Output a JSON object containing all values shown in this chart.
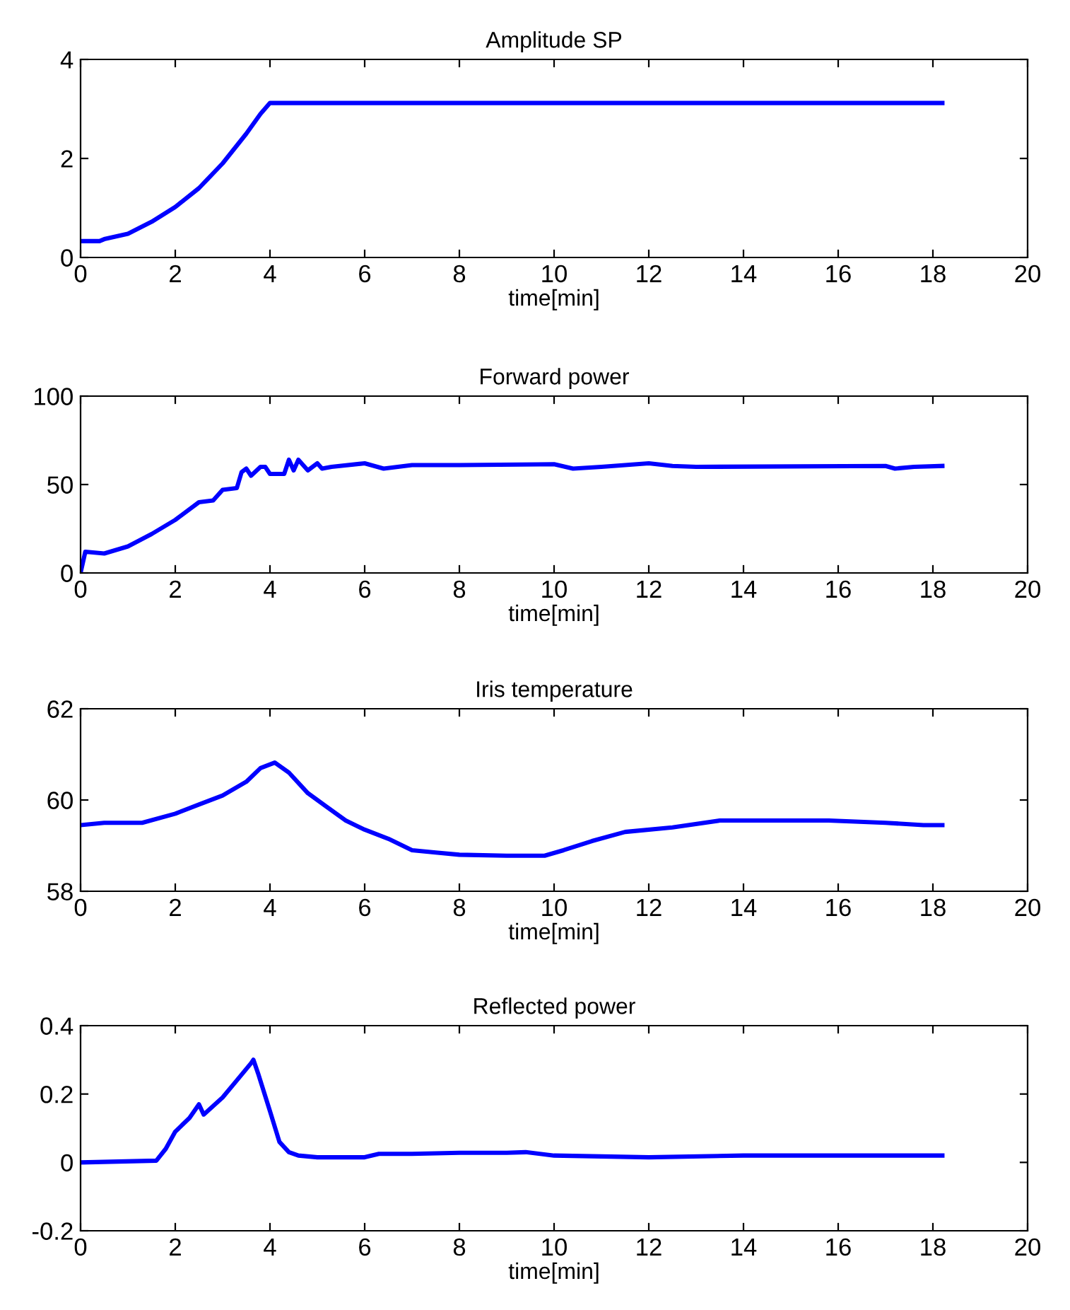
{
  "chart_data": [
    {
      "type": "line",
      "title": "Amplitude SP",
      "xlabel": "time[min]",
      "xlim": [
        0,
        20
      ],
      "xticks": [
        0,
        2,
        4,
        6,
        8,
        10,
        12,
        14,
        16,
        18,
        20
      ],
      "ylim": [
        0,
        4
      ],
      "yticks": [
        0,
        2,
        4
      ],
      "grid": false,
      "series": [
        {
          "color": "#0000ff",
          "x": [
            0,
            0.4,
            0.5,
            1,
            1.5,
            2,
            2.5,
            3,
            3.5,
            3.8,
            4,
            18.2
          ],
          "values": [
            0.33,
            0.33,
            0.37,
            0.48,
            0.72,
            1.02,
            1.4,
            1.9,
            2.5,
            2.9,
            3.12,
            3.12
          ]
        }
      ]
    },
    {
      "type": "line",
      "title": "Forward power",
      "xlabel": "time[min]",
      "xlim": [
        0,
        20
      ],
      "xticks": [
        0,
        2,
        4,
        6,
        8,
        10,
        12,
        14,
        16,
        18,
        20
      ],
      "ylim": [
        0,
        100
      ],
      "yticks": [
        0,
        50,
        100
      ],
      "grid": false,
      "series": [
        {
          "color": "#0000ff",
          "x": [
            0,
            0.1,
            0.5,
            1,
            1.5,
            2,
            2.5,
            2.8,
            3,
            3.3,
            3.4,
            3.5,
            3.6,
            3.8,
            3.9,
            4,
            4.3,
            4.4,
            4.5,
            4.6,
            4.8,
            5.0,
            5.1,
            5.3,
            6,
            6.4,
            7,
            8,
            10,
            10.4,
            11,
            11.5,
            12,
            12.5,
            13,
            17,
            17.2,
            17.6,
            18.2
          ],
          "values": [
            0,
            12,
            11,
            15,
            22,
            30,
            40,
            41,
            47,
            48,
            57,
            59,
            55,
            60,
            60,
            56,
            56,
            64,
            58,
            64,
            58,
            62,
            59,
            60,
            62,
            59,
            61,
            61,
            61.5,
            59,
            60,
            61,
            62,
            60.5,
            60,
            60.5,
            59,
            60,
            60.5
          ]
        }
      ]
    },
    {
      "type": "line",
      "title": "Iris temperature",
      "xlabel": "time[min]",
      "xlim": [
        0,
        20
      ],
      "xticks": [
        0,
        2,
        4,
        6,
        8,
        10,
        12,
        14,
        16,
        18,
        20
      ],
      "ylim": [
        58,
        62
      ],
      "yticks": [
        58,
        60,
        62
      ],
      "grid": false,
      "series": [
        {
          "color": "#0000ff",
          "x": [
            0,
            0.5,
            1.3,
            2,
            2.5,
            3,
            3.5,
            3.8,
            4.1,
            4.4,
            4.8,
            5.2,
            5.6,
            6,
            6.5,
            7,
            7.5,
            8,
            9,
            9.8,
            10.2,
            10.8,
            11.5,
            12.5,
            13.5,
            15.8,
            17,
            17.8,
            18.2
          ],
          "values": [
            59.45,
            59.5,
            59.5,
            59.7,
            59.9,
            60.1,
            60.4,
            60.7,
            60.82,
            60.6,
            60.15,
            59.85,
            59.55,
            59.35,
            59.15,
            58.9,
            58.85,
            58.8,
            58.78,
            58.78,
            58.9,
            59.1,
            59.3,
            59.4,
            59.55,
            59.55,
            59.5,
            59.45,
            59.45
          ]
        }
      ]
    },
    {
      "type": "line",
      "title": "Reflected power",
      "xlabel": "time[min]",
      "xlim": [
        0,
        20
      ],
      "xticks": [
        0,
        2,
        4,
        6,
        8,
        10,
        12,
        14,
        16,
        18,
        20
      ],
      "ylim": [
        -0.2,
        0.4
      ],
      "yticks": [
        -0.2,
        0,
        0.2,
        0.4
      ],
      "grid": false,
      "series": [
        {
          "color": "#0000ff",
          "x": [
            0,
            1.6,
            1.8,
            2,
            2.3,
            2.5,
            2.6,
            3,
            3.3,
            3.6,
            3.65,
            3.75,
            4,
            4.2,
            4.4,
            4.6,
            5,
            6,
            6.3,
            7,
            8,
            9,
            9.4,
            10,
            12,
            14,
            16,
            18.2
          ],
          "values": [
            0,
            0.005,
            0.04,
            0.09,
            0.13,
            0.17,
            0.14,
            0.19,
            0.24,
            0.29,
            0.3,
            0.26,
            0.15,
            0.06,
            0.03,
            0.02,
            0.015,
            0.015,
            0.025,
            0.025,
            0.028,
            0.028,
            0.03,
            0.02,
            0.015,
            0.02,
            0.02,
            0.02
          ]
        }
      ]
    }
  ]
}
